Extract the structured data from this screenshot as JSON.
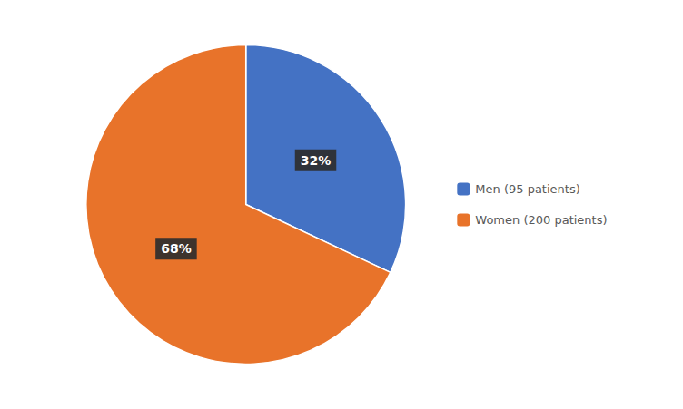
{
  "chart_data": {
    "type": "pie",
    "categories": [
      "Men (95 patients)",
      "Women (200 patients)"
    ],
    "values": [
      32,
      68
    ],
    "value_labels": [
      "32%",
      "68%"
    ],
    "colors": [
      "#4472C4",
      "#E8732A"
    ],
    "data_labels": true,
    "legend": "right"
  }
}
